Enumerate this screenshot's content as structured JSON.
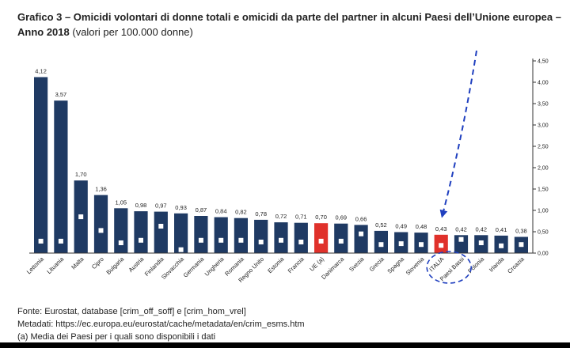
{
  "header": {
    "title_bold": "Grafico 3 – Omicidi volontari di donne totali e omicidi da parte del partner in alcuni Paesi dell’Unione europea – Anno 2018",
    "title_normal": " (valori per 100.000 donne)"
  },
  "chart_data": {
    "type": "bar",
    "categories": [
      "Lettonia",
      "Lituania",
      "Malta",
      "Cipro",
      "Bulgaria",
      "Austria",
      "Finlandia",
      "Slovacchia",
      "Germania",
      "Ungheria",
      "Romania",
      "Regno Unito",
      "Estonia",
      "Francia",
      "UE (a)",
      "Danimarca",
      "Svezia",
      "Grecia",
      "Spagna",
      "Slovenia",
      "ITALIA",
      "Paesi Bassi",
      "Polonia",
      "Irlanda",
      "Croazia"
    ],
    "series": [
      {
        "values": [
          4.12,
          3.57,
          1.7,
          1.36,
          1.05,
          0.98,
          0.97,
          0.93,
          0.87,
          0.84,
          0.82,
          0.78,
          0.72,
          0.71,
          0.7,
          0.69,
          0.66,
          0.52,
          0.49,
          0.48,
          0.43,
          0.42,
          0.42,
          0.41,
          0.38
        ],
        "data_labels": [
          "4,12",
          "3,57",
          "1,70",
          "1,36",
          "1,05",
          "0,98",
          "0,97",
          "0,93",
          "0,87",
          "0,84",
          "0,82",
          "0,78",
          "0,72",
          "0,71",
          "0,70",
          "0,69",
          "0,66",
          "0,52",
          "0,49",
          "0,48",
          "0,43",
          "0,42",
          "0,42",
          "0,41",
          "0,38"
        ]
      },
      {
        "values": [
          0.28,
          0.28,
          0.85,
          0.53,
          0.24,
          0.3,
          0.63,
          0.08,
          0.3,
          0.3,
          0.3,
          0.26,
          0.3,
          0.26,
          0.28,
          0.28,
          0.45,
          0.2,
          0.22,
          0.2,
          0.18,
          0.32,
          0.24,
          0.17,
          0.2
        ]
      }
    ],
    "highlight_categories": [
      "UE (a)",
      "ITALIA"
    ],
    "colors": {
      "bar": "#1f3a63",
      "highlight": "#e0312b",
      "marker": "#ffffff",
      "axis": "#333333",
      "annotation": "#1f3fbf"
    },
    "y_axis": {
      "position": "right",
      "ylim": [
        0,
        4.5
      ],
      "ticks": [
        0,
        0.5,
        1,
        1.5,
        2,
        2.5,
        3,
        3.5,
        4,
        4.5
      ],
      "tick_labels": [
        "0,00",
        "0,50",
        "1,00",
        "1,50",
        "2,00",
        "2,50",
        "3,00",
        "3,50",
        "4,00",
        "4,50"
      ]
    },
    "grid": false,
    "annotations": {
      "arrow": "dashed blue arrow pointing down at ITALIA",
      "circle": "dashed blue ellipse around ITALIA and Paesi Bassi labels"
    }
  },
  "footer": {
    "source": "Fonte: Eurostat,  database [crim_off_soff] e [crim_hom_vrel]",
    "metadata": "Metadati: https://ec.europa.eu/eurostat/cache/metadata/en/crim_esms.htm",
    "note": "(a) Media dei Paesi per i quali sono disponibili i dati"
  }
}
